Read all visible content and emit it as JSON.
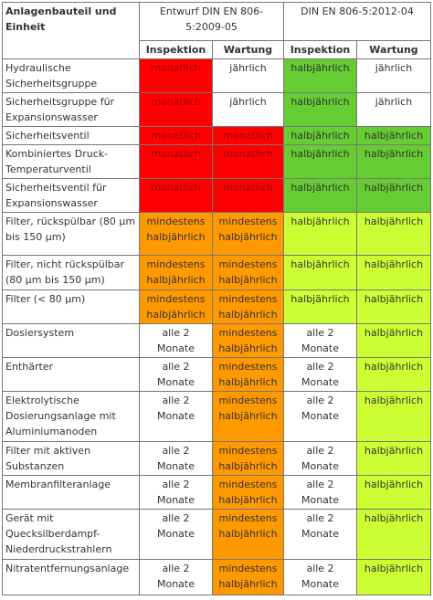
{
  "table": {
    "header": {
      "component": "Anlagenbauteil und Einheit",
      "draft": "Entwurf DIN EN 806-5:2009-05",
      "standard": "DIN EN 806-5:2012-04",
      "inspection": "Inspektion",
      "maintenance": "Wartung"
    },
    "rows": [
      {
        "label": "Hydraulische Sicherheitsgruppe",
        "cells": [
          {
            "text": "monatlich",
            "color": "red"
          },
          {
            "text": "jährlich",
            "color": "white"
          },
          {
            "text": "halbjährlich",
            "color": "green"
          },
          {
            "text": "jährlich",
            "color": "white"
          }
        ]
      },
      {
        "label": "Sicherheitsgruppe für Expansionswasser",
        "cells": [
          {
            "text": "monatlich",
            "color": "red"
          },
          {
            "text": "jährlich",
            "color": "white"
          },
          {
            "text": "halbjährlich",
            "color": "green"
          },
          {
            "text": "jährlich",
            "color": "white"
          }
        ]
      },
      {
        "label": "Sicherheitsventil",
        "cells": [
          {
            "text": "monatlich",
            "color": "red"
          },
          {
            "text": "monatlich",
            "color": "red"
          },
          {
            "text": "halbjährlich",
            "color": "green"
          },
          {
            "text": "halbjährlich",
            "color": "green"
          }
        ]
      },
      {
        "label": "Kombiniertes Druck-Temperaturventil",
        "cells": [
          {
            "text": "monatlich",
            "color": "red"
          },
          {
            "text": "monatlich",
            "color": "red"
          },
          {
            "text": "halbjährlich",
            "color": "green"
          },
          {
            "text": "halbjährlich",
            "color": "green"
          }
        ]
      },
      {
        "label": "Sicherheitsventil für Expansionswasser",
        "cells": [
          {
            "text": "monatlich",
            "color": "red"
          },
          {
            "text": "monatlich",
            "color": "red"
          },
          {
            "text": "halbjährlich",
            "color": "green"
          },
          {
            "text": "halbjährlich",
            "color": "green"
          }
        ]
      },
      {
        "label": "Filter, rückspülbar (80 µm bis 150 µm)",
        "cells": [
          {
            "text": "mindestens halbjährlich",
            "color": "orange"
          },
          {
            "text": "mindestens halbjährlich",
            "color": "orange"
          },
          {
            "text": "halbjährlich",
            "color": "lime"
          },
          {
            "text": "halbjährlich",
            "color": "lime"
          }
        ]
      },
      {
        "label": "Filter, nicht rückspülbar (80 µm bis 150 µm)",
        "cells": [
          {
            "text": "mindestens halbjährlich",
            "color": "orange"
          },
          {
            "text": "mindestens halbjährlich",
            "color": "orange"
          },
          {
            "text": "halbjährlich",
            "color": "lime"
          },
          {
            "text": "halbjährlich",
            "color": "lime"
          }
        ]
      },
      {
        "label": "Filter (< 80 µm)",
        "cells": [
          {
            "text": "mindestens halbjährlich",
            "color": "orange"
          },
          {
            "text": "mindestens halbjährlich",
            "color": "orange"
          },
          {
            "text": "halbjährlich",
            "color": "lime"
          },
          {
            "text": "halbjährlich",
            "color": "lime"
          }
        ]
      },
      {
        "label": "Dosiersystem",
        "cells": [
          {
            "text": "alle 2 Monate",
            "color": "white"
          },
          {
            "text": "mindestens halbjährlich",
            "color": "orange"
          },
          {
            "text": "alle 2 Monate",
            "color": "white"
          },
          {
            "text": "halbjährlich",
            "color": "lime"
          }
        ]
      },
      {
        "label": "Enthärter",
        "cells": [
          {
            "text": "alle 2 Monate",
            "color": "white"
          },
          {
            "text": "mindestens halbjährlich",
            "color": "orange"
          },
          {
            "text": "alle 2 Monate",
            "color": "white"
          },
          {
            "text": "halbjährlich",
            "color": "lime"
          }
        ]
      },
      {
        "label": "Elektrolytische Dosierungsanlage mit Aluminiumanoden",
        "cells": [
          {
            "text": "alle 2 Monate",
            "color": "white"
          },
          {
            "text": "mindestens halbjährlich",
            "color": "orange"
          },
          {
            "text": "alle 2 Monate",
            "color": "white"
          },
          {
            "text": "halbjährlich",
            "color": "lime"
          }
        ]
      },
      {
        "label": "Filter mit aktiven Substanzen",
        "cells": [
          {
            "text": "alle 2 Monate",
            "color": "white"
          },
          {
            "text": "mindestens halbjährlich",
            "color": "orange"
          },
          {
            "text": "alle 2 Monate",
            "color": "white"
          },
          {
            "text": "halbjährlich",
            "color": "lime"
          }
        ]
      },
      {
        "label": "Membranfilteranlage",
        "cells": [
          {
            "text": "alle 2 Monate",
            "color": "white"
          },
          {
            "text": "mindestens halbjährlich",
            "color": "orange"
          },
          {
            "text": "alle 2 Monate",
            "color": "white"
          },
          {
            "text": "halbjährlich",
            "color": "lime"
          }
        ]
      },
      {
        "label": "Gerät mit Quecksilberdampf-Niederdruckstrahlern",
        "cells": [
          {
            "text": "alle 2 Monate",
            "color": "white"
          },
          {
            "text": "mindestens halbjährlich",
            "color": "orange"
          },
          {
            "text": "alle 2 Monate",
            "color": "white"
          },
          {
            "text": "halbjährlich",
            "color": "lime"
          }
        ]
      },
      {
        "label": "Nitratentfernungsanlage",
        "cells": [
          {
            "text": "alle 2 Monate",
            "color": "white"
          },
          {
            "text": "mindestens halbjährlich",
            "color": "orange"
          },
          {
            "text": "alle 2 Monate",
            "color": "white"
          },
          {
            "text": "halbjährlich",
            "color": "lime"
          }
        ]
      }
    ]
  }
}
